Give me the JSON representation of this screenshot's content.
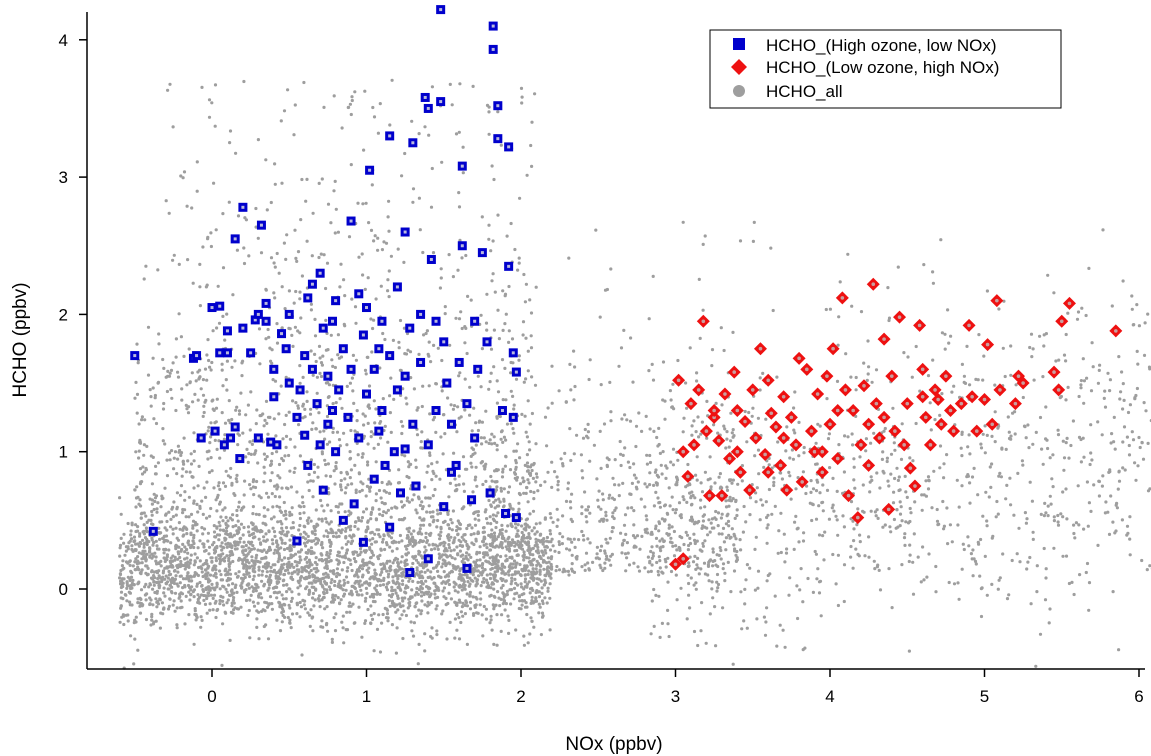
{
  "chart_data": {
    "type": "scatter",
    "title": "",
    "xlabel": "NOx (ppbv)",
    "ylabel": "HCHO (ppbv)",
    "xlim": [
      -0.8,
      6.15
    ],
    "ylim": [
      -0.58,
      4.25
    ],
    "x_ticks": [
      "0",
      "1",
      "2",
      "3",
      "4",
      "5",
      "6"
    ],
    "y_ticks": [
      "0",
      "1",
      "2",
      "3",
      "4"
    ],
    "grid": false,
    "legend_position": "top-right",
    "legend": [
      {
        "name": "HCHO_(High ozone, low NOx)",
        "marker": "square",
        "color": "#0000cc"
      },
      {
        "name": "HCHO_(Low ozone, high NOx)",
        "marker": "diamond",
        "color": "#ee1111"
      },
      {
        "name": "HCHO_all",
        "marker": "circle",
        "color": "#9e9e9e"
      }
    ],
    "series": [
      {
        "name": "HCHO_(High ozone, low NOx)",
        "marker": "square",
        "color": "#0000cc",
        "points": [
          [
            -0.5,
            1.7
          ],
          [
            -0.38,
            0.42
          ],
          [
            -0.12,
            1.68
          ],
          [
            -0.1,
            1.7
          ],
          [
            -0.07,
            1.1
          ],
          [
            0.0,
            2.05
          ],
          [
            0.02,
            1.15
          ],
          [
            0.05,
            2.06
          ],
          [
            0.05,
            1.72
          ],
          [
            0.08,
            1.05
          ],
          [
            0.1,
            1.88
          ],
          [
            0.1,
            1.72
          ],
          [
            0.12,
            1.1
          ],
          [
            0.15,
            1.18
          ],
          [
            0.15,
            2.55
          ],
          [
            0.18,
            0.95
          ],
          [
            0.2,
            2.78
          ],
          [
            0.2,
            1.9
          ],
          [
            0.25,
            1.72
          ],
          [
            0.28,
            1.96
          ],
          [
            0.3,
            2.0
          ],
          [
            0.3,
            1.1
          ],
          [
            0.32,
            2.65
          ],
          [
            0.35,
            2.08
          ],
          [
            0.38,
            1.07
          ],
          [
            0.4,
            1.6
          ],
          [
            0.42,
            1.05
          ],
          [
            0.45,
            1.86
          ],
          [
            0.48,
            1.75
          ],
          [
            0.5,
            2.0
          ],
          [
            0.55,
            1.25
          ],
          [
            0.57,
            1.45
          ],
          [
            0.6,
            1.12
          ],
          [
            0.6,
            1.7
          ],
          [
            0.62,
            2.12
          ],
          [
            0.62,
            0.9
          ],
          [
            0.65,
            1.6
          ],
          [
            0.65,
            2.22
          ],
          [
            0.68,
            1.35
          ],
          [
            0.7,
            1.05
          ],
          [
            0.7,
            2.3
          ],
          [
            0.72,
            1.9
          ],
          [
            0.72,
            0.72
          ],
          [
            0.75,
            1.2
          ],
          [
            0.75,
            1.55
          ],
          [
            0.78,
            1.95
          ],
          [
            0.8,
            2.1
          ],
          [
            0.8,
            1.0
          ],
          [
            0.82,
            1.45
          ],
          [
            0.85,
            1.75
          ],
          [
            0.88,
            1.25
          ],
          [
            0.9,
            1.6
          ],
          [
            0.9,
            2.68
          ],
          [
            0.92,
            0.62
          ],
          [
            0.95,
            1.1
          ],
          [
            0.98,
            1.85
          ],
          [
            1.0,
            2.05
          ],
          [
            1.0,
            1.42
          ],
          [
            1.02,
            3.05
          ],
          [
            1.05,
            1.6
          ],
          [
            1.05,
            0.8
          ],
          [
            1.08,
            1.15
          ],
          [
            1.1,
            1.95
          ],
          [
            1.1,
            1.3
          ],
          [
            1.12,
            0.9
          ],
          [
            1.15,
            1.7
          ],
          [
            1.15,
            3.3
          ],
          [
            1.18,
            1.0
          ],
          [
            1.2,
            1.45
          ],
          [
            1.2,
            2.2
          ],
          [
            1.22,
            0.7
          ],
          [
            1.25,
            1.55
          ],
          [
            1.25,
            2.6
          ],
          [
            1.28,
            1.9
          ],
          [
            1.3,
            3.25
          ],
          [
            1.3,
            1.2
          ],
          [
            1.32,
            0.75
          ],
          [
            1.35,
            1.65
          ],
          [
            1.35,
            2.0
          ],
          [
            1.38,
            3.58
          ],
          [
            1.4,
            3.5
          ],
          [
            1.4,
            1.05
          ],
          [
            1.42,
            2.4
          ],
          [
            1.45,
            1.3
          ],
          [
            1.48,
            4.22
          ],
          [
            1.48,
            3.55
          ],
          [
            1.5,
            1.8
          ],
          [
            1.5,
            0.6
          ],
          [
            1.52,
            1.5
          ],
          [
            1.55,
            1.2
          ],
          [
            1.58,
            0.9
          ],
          [
            1.6,
            1.65
          ],
          [
            1.62,
            3.08
          ],
          [
            1.62,
            2.5
          ],
          [
            1.65,
            1.35
          ],
          [
            1.68,
            0.65
          ],
          [
            1.7,
            1.1
          ],
          [
            1.72,
            1.6
          ],
          [
            1.75,
            2.45
          ],
          [
            1.78,
            1.8
          ],
          [
            1.8,
            0.7
          ],
          [
            1.82,
            4.1
          ],
          [
            1.82,
            3.93
          ],
          [
            1.85,
            3.52
          ],
          [
            1.85,
            3.28
          ],
          [
            1.88,
            1.3
          ],
          [
            1.9,
            0.55
          ],
          [
            1.92,
            3.22
          ],
          [
            1.92,
            2.35
          ],
          [
            1.95,
            1.72
          ],
          [
            1.95,
            1.25
          ],
          [
            1.97,
            1.58
          ],
          [
            1.97,
            0.52
          ],
          [
            0.98,
            0.34
          ],
          [
            1.28,
            0.12
          ],
          [
            1.4,
            0.22
          ],
          [
            1.65,
            0.15
          ],
          [
            0.55,
            0.35
          ],
          [
            1.15,
            0.45
          ],
          [
            0.85,
            0.5
          ],
          [
            0.35,
            1.95
          ],
          [
            0.5,
            1.5
          ],
          [
            0.95,
            2.15
          ],
          [
            1.25,
            1.02
          ],
          [
            1.55,
            0.85
          ],
          [
            1.7,
            1.95
          ],
          [
            0.4,
            1.4
          ],
          [
            0.78,
            1.3
          ],
          [
            1.08,
            1.75
          ],
          [
            1.45,
            1.95
          ]
        ]
      },
      {
        "name": "HCHO_(Low ozone, high NOx)",
        "marker": "diamond",
        "color": "#ee1111",
        "points": [
          [
            3.0,
            0.18
          ],
          [
            3.05,
            0.22
          ],
          [
            3.02,
            1.52
          ],
          [
            3.05,
            1.0
          ],
          [
            3.08,
            0.82
          ],
          [
            3.1,
            1.35
          ],
          [
            3.12,
            1.05
          ],
          [
            3.15,
            1.45
          ],
          [
            3.18,
            1.95
          ],
          [
            3.2,
            1.15
          ],
          [
            3.22,
            0.68
          ],
          [
            3.25,
            1.25
          ],
          [
            3.28,
            1.08
          ],
          [
            3.3,
            0.68
          ],
          [
            3.32,
            1.42
          ],
          [
            3.35,
            0.95
          ],
          [
            3.38,
            1.58
          ],
          [
            3.4,
            1.3
          ],
          [
            3.42,
            0.85
          ],
          [
            3.45,
            1.22
          ],
          [
            3.48,
            0.72
          ],
          [
            3.5,
            1.45
          ],
          [
            3.52,
            1.1
          ],
          [
            3.55,
            1.75
          ],
          [
            3.58,
            0.98
          ],
          [
            3.6,
            1.52
          ],
          [
            3.62,
            1.28
          ],
          [
            3.65,
            1.18
          ],
          [
            3.68,
            0.9
          ],
          [
            3.7,
            1.4
          ],
          [
            3.72,
            0.72
          ],
          [
            3.75,
            1.25
          ],
          [
            3.78,
            1.05
          ],
          [
            3.8,
            1.68
          ],
          [
            3.82,
            0.78
          ],
          [
            3.85,
            1.6
          ],
          [
            3.88,
            1.15
          ],
          [
            3.9,
            1.0
          ],
          [
            3.92,
            1.42
          ],
          [
            3.95,
            0.85
          ],
          [
            3.98,
            1.55
          ],
          [
            4.0,
            1.2
          ],
          [
            4.02,
            1.75
          ],
          [
            4.05,
            0.95
          ],
          [
            4.08,
            2.12
          ],
          [
            4.1,
            1.45
          ],
          [
            4.12,
            0.68
          ],
          [
            4.15,
            1.3
          ],
          [
            4.18,
            0.52
          ],
          [
            4.2,
            1.05
          ],
          [
            4.22,
            1.48
          ],
          [
            4.25,
            1.2
          ],
          [
            4.28,
            2.22
          ],
          [
            4.3,
            1.35
          ],
          [
            4.32,
            1.1
          ],
          [
            4.35,
            1.82
          ],
          [
            4.38,
            0.58
          ],
          [
            4.4,
            1.55
          ],
          [
            4.42,
            1.15
          ],
          [
            4.45,
            1.98
          ],
          [
            4.48,
            1.05
          ],
          [
            4.5,
            1.35
          ],
          [
            4.52,
            0.88
          ],
          [
            4.55,
            0.75
          ],
          [
            4.58,
            1.92
          ],
          [
            4.6,
            1.4
          ],
          [
            4.62,
            1.25
          ],
          [
            4.65,
            1.05
          ],
          [
            4.68,
            1.45
          ],
          [
            4.7,
            1.38
          ],
          [
            4.72,
            1.2
          ],
          [
            4.75,
            1.55
          ],
          [
            4.78,
            1.3
          ],
          [
            4.8,
            1.15
          ],
          [
            4.85,
            1.35
          ],
          [
            4.9,
            1.92
          ],
          [
            4.92,
            1.4
          ],
          [
            4.95,
            1.15
          ],
          [
            5.0,
            1.38
          ],
          [
            5.02,
            1.78
          ],
          [
            5.05,
            1.2
          ],
          [
            5.08,
            2.1
          ],
          [
            5.1,
            1.45
          ],
          [
            5.2,
            1.35
          ],
          [
            5.22,
            1.55
          ],
          [
            5.25,
            1.5
          ],
          [
            5.45,
            1.58
          ],
          [
            5.48,
            1.45
          ],
          [
            5.5,
            1.95
          ],
          [
            5.55,
            2.08
          ],
          [
            5.85,
            1.88
          ],
          [
            3.7,
            1.1
          ],
          [
            3.4,
            1.0
          ],
          [
            3.6,
            0.85
          ],
          [
            4.05,
            1.3
          ],
          [
            4.35,
            1.25
          ],
          [
            3.95,
            1.0
          ],
          [
            4.25,
            0.9
          ],
          [
            3.25,
            1.3
          ],
          [
            4.6,
            1.6
          ]
        ]
      }
    ],
    "background_series": {
      "name": "HCHO_all",
      "marker": "circle",
      "color": "#9e9e9e",
      "approx_count": 5500,
      "description_clusters": "dense near x 0–2, y -0.4–0.6; spread up to y 3.7; sparse cloud x 2–6.1, y -0.2–2.7",
      "seed": 12345
    }
  }
}
